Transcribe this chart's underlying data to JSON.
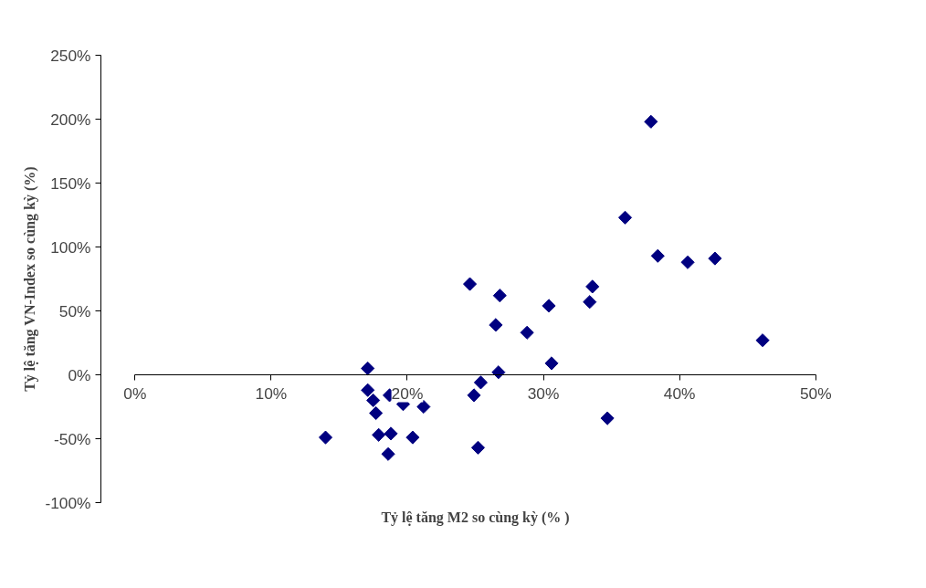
{
  "chart_data": {
    "type": "scatter",
    "xlabel": "Tỷ lệ tăng M2 so cùng kỳ (% )",
    "ylabel": "Tỷ lệ tăng VN-Index so cùng kỳ (%)",
    "marker": "diamond",
    "grid": false,
    "xlim": [
      0,
      50
    ],
    "ylim": [
      -100,
      250
    ],
    "xticks": [
      {
        "value": 0,
        "label": "0%"
      },
      {
        "value": 10,
        "label": "10%"
      },
      {
        "value": 20,
        "label": "20%"
      },
      {
        "value": 30,
        "label": "30%"
      },
      {
        "value": 40,
        "label": "40%"
      },
      {
        "value": 50,
        "label": "50%"
      }
    ],
    "yticks": [
      {
        "value": -100,
        "label": "-100%"
      },
      {
        "value": -50,
        "label": "-50%"
      },
      {
        "value": 0,
        "label": "0%"
      },
      {
        "value": 50,
        "label": "50%"
      },
      {
        "value": 100,
        "label": "100%"
      },
      {
        "value": 150,
        "label": "150%"
      },
      {
        "value": 200,
        "label": "200%"
      },
      {
        "value": 250,
        "label": "250%"
      }
    ],
    "series": [
      {
        "color": "#000080",
        "x": [
          14.0,
          17.1,
          17.1,
          17.5,
          17.7,
          17.9,
          18.7,
          18.6,
          18.8,
          19.7,
          20.4,
          21.2,
          24.6,
          24.9,
          25.4,
          25.2,
          26.5,
          26.8,
          26.7,
          28.8,
          30.4,
          30.6,
          33.4,
          33.6,
          34.7,
          36.0,
          37.9,
          38.4,
          40.6,
          42.6,
          46.1
        ],
        "values": [
          -49,
          5,
          -12,
          -20,
          -30,
          -47,
          -16,
          -62,
          -46,
          -23,
          -49,
          -25,
          71,
          -16,
          -6,
          -57,
          39,
          62,
          2,
          33,
          54,
          9,
          57,
          69,
          -34,
          123,
          198,
          93,
          88,
          91,
          27
        ]
      }
    ]
  }
}
